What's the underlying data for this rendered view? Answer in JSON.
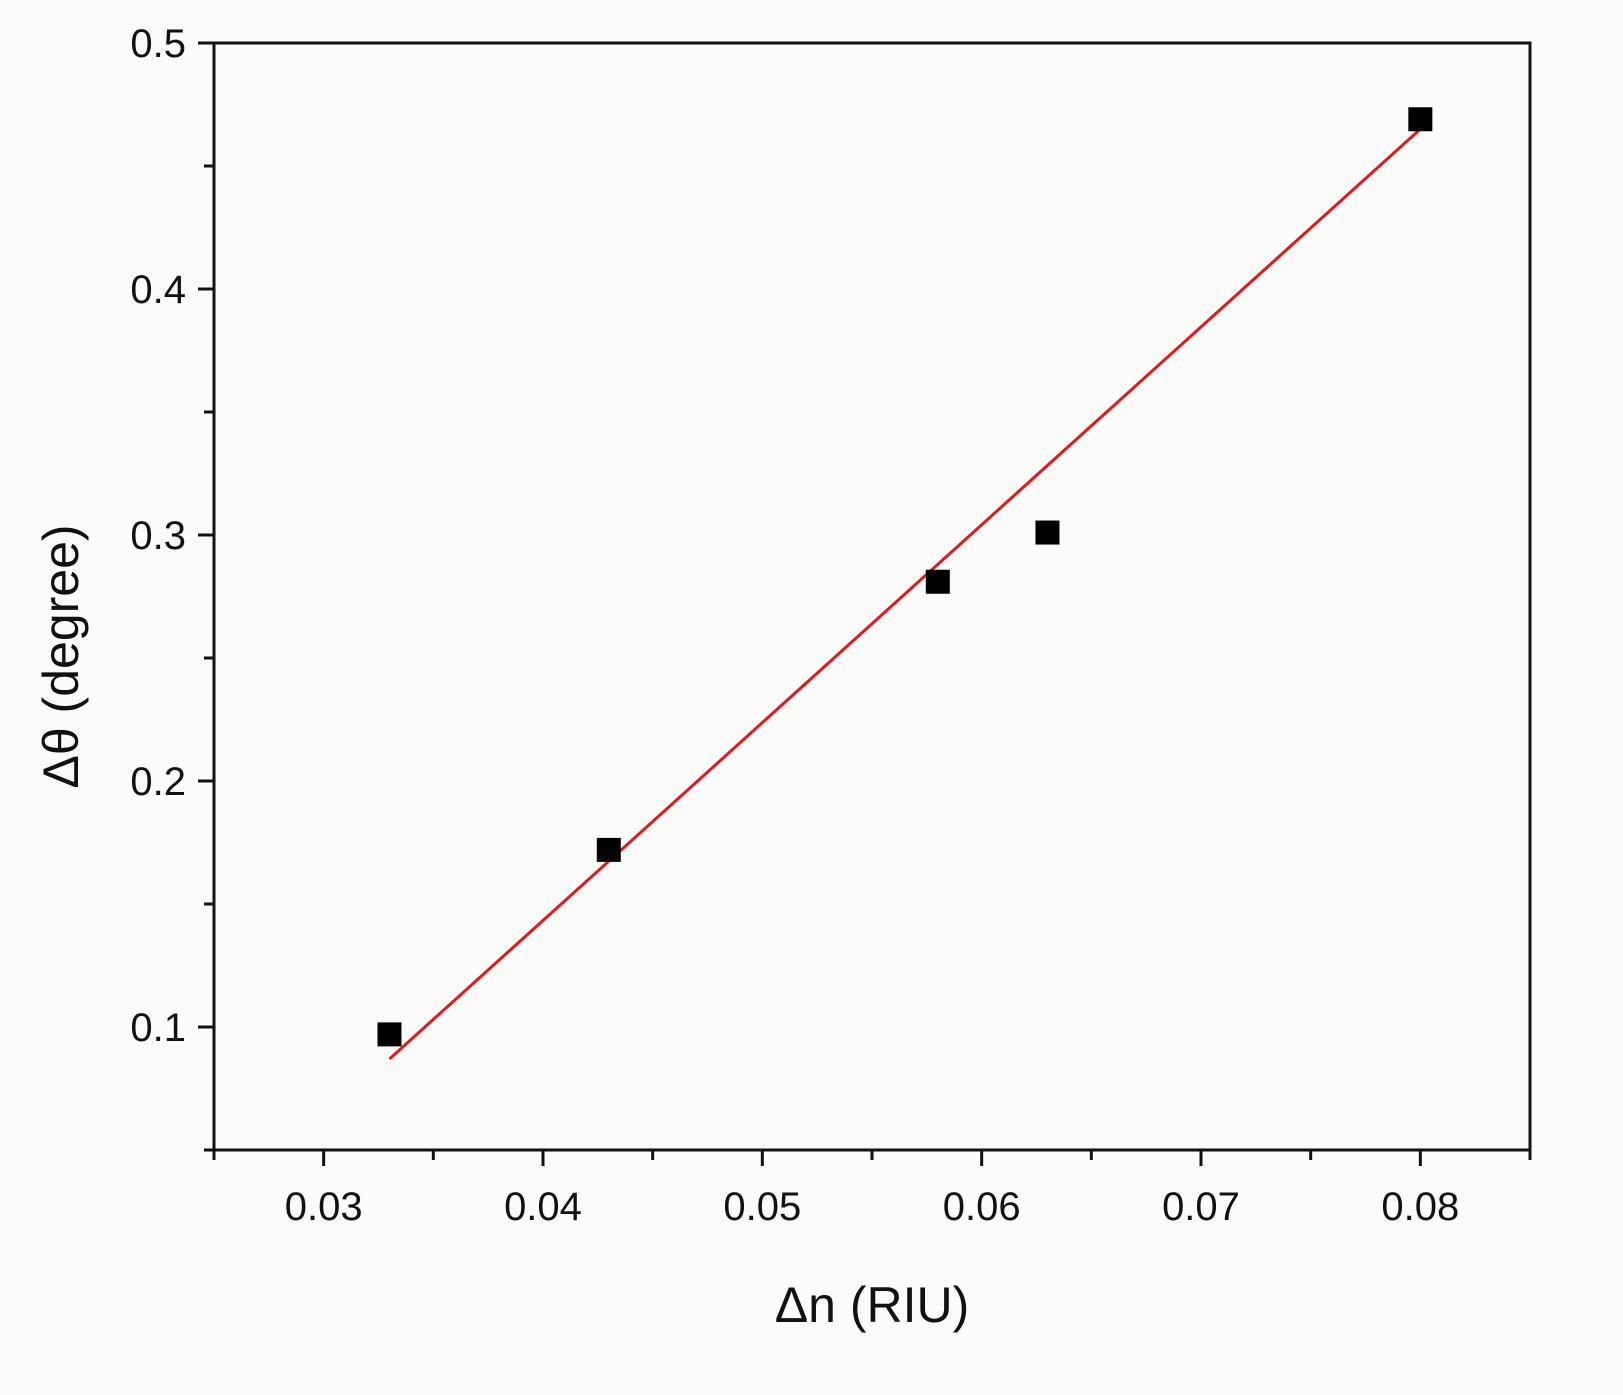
{
  "chart_data": {
    "type": "scatter",
    "x_label": "Δn (RIU)",
    "y_label": "Δθ (degree)",
    "xlim": [
      0.025,
      0.085
    ],
    "ylim": [
      0.05,
      0.5
    ],
    "x_ticks": [
      "0.03",
      "0.04",
      "0.05",
      "0.06",
      "0.07",
      "0.08"
    ],
    "y_ticks": [
      "0.1",
      "0.2",
      "0.3",
      "0.4",
      "0.5"
    ],
    "x_minor_step": 0.005,
    "y_minor_step": 0.05,
    "grid": false,
    "series": [
      {
        "marker": "square",
        "color": "#000000",
        "points": [
          {
            "x": 0.033,
            "y": 0.097
          },
          {
            "x": 0.043,
            "y": 0.172
          },
          {
            "x": 0.058,
            "y": 0.281
          },
          {
            "x": 0.063,
            "y": 0.301
          },
          {
            "x": 0.08,
            "y": 0.469
          }
        ]
      }
    ],
    "fit_line": {
      "color": "#e0191d",
      "from": {
        "x": 0.033,
        "y": 0.087
      },
      "to": {
        "x": 0.08,
        "y": 0.465
      }
    }
  }
}
